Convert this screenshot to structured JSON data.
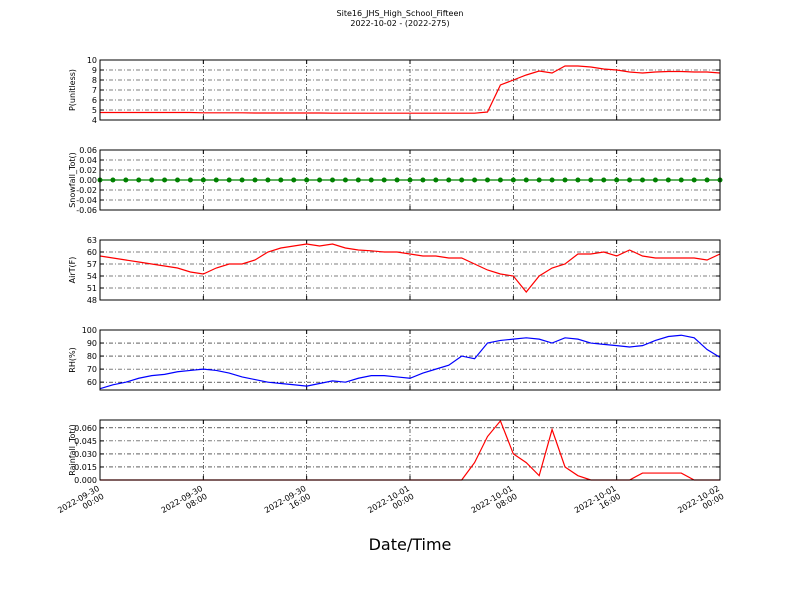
{
  "chart_data": [
    {
      "type": "line",
      "title": "Site16_JHS_High_School_Fifteen",
      "subtitle": "2022-10-02 - (2022-275)",
      "ylabel": "P(unitless)",
      "grid": true,
      "xlim": [
        "2022-09-30 00:00",
        "2022-10-02 00:00"
      ],
      "x": [
        "2022-09-30 00:00",
        "2022-09-30 01:00",
        "2022-09-30 02:00",
        "2022-09-30 03:00",
        "2022-09-30 04:00",
        "2022-09-30 05:00",
        "2022-09-30 06:00",
        "2022-09-30 07:00",
        "2022-09-30 08:00",
        "2022-09-30 09:00",
        "2022-09-30 10:00",
        "2022-09-30 11:00",
        "2022-09-30 12:00",
        "2022-09-30 13:00",
        "2022-09-30 14:00",
        "2022-09-30 15:00",
        "2022-09-30 16:00",
        "2022-09-30 17:00",
        "2022-09-30 18:00",
        "2022-09-30 19:00",
        "2022-09-30 20:00",
        "2022-09-30 21:00",
        "2022-09-30 22:00",
        "2022-09-30 23:00",
        "2022-10-01 00:00",
        "2022-10-01 01:00",
        "2022-10-01 02:00",
        "2022-10-01 03:00",
        "2022-10-01 04:00",
        "2022-10-01 05:00",
        "2022-10-01 06:00",
        "2022-10-01 07:00",
        "2022-10-01 08:00",
        "2022-10-01 09:00",
        "2022-10-01 10:00",
        "2022-10-01 11:00",
        "2022-10-01 12:00",
        "2022-10-01 13:00",
        "2022-10-01 14:00",
        "2022-10-01 15:00",
        "2022-10-01 16:00",
        "2022-10-01 17:00",
        "2022-10-01 18:00",
        "2022-10-01 19:00",
        "2022-10-01 20:00",
        "2022-10-01 21:00",
        "2022-10-01 22:00",
        "2022-10-01 23:00",
        "2022-10-02 00:00"
      ],
      "ylim": [
        4,
        10
      ],
      "yticks": [
        4,
        5,
        6,
        7,
        8,
        9,
        10
      ],
      "series": [
        {
          "color": "#ff0000",
          "values": [
            4.75,
            4.75,
            4.75,
            4.75,
            4.75,
            4.75,
            4.75,
            4.75,
            4.72,
            4.72,
            4.72,
            4.72,
            4.7,
            4.7,
            4.7,
            4.7,
            4.7,
            4.7,
            4.68,
            4.68,
            4.68,
            4.68,
            4.68,
            4.68,
            4.68,
            4.68,
            4.68,
            4.68,
            4.68,
            4.68,
            4.8,
            7.5,
            8.0,
            8.5,
            8.9,
            8.7,
            9.4,
            9.4,
            9.3,
            9.1,
            9.0,
            8.8,
            8.7,
            8.8,
            8.85,
            8.85,
            8.8,
            8.8,
            8.7
          ]
        }
      ]
    },
    {
      "type": "line",
      "ylabel": "Snowfall_Tot()",
      "grid": true,
      "markers": true,
      "xlim": [
        "2022-09-30 00:00",
        "2022-10-02 00:00"
      ],
      "x": [
        "2022-09-30 00:00",
        "2022-09-30 01:00",
        "2022-09-30 02:00",
        "2022-09-30 03:00",
        "2022-09-30 04:00",
        "2022-09-30 05:00",
        "2022-09-30 06:00",
        "2022-09-30 07:00",
        "2022-09-30 08:00",
        "2022-09-30 09:00",
        "2022-09-30 10:00",
        "2022-09-30 11:00",
        "2022-09-30 12:00",
        "2022-09-30 13:00",
        "2022-09-30 14:00",
        "2022-09-30 15:00",
        "2022-09-30 16:00",
        "2022-09-30 17:00",
        "2022-09-30 18:00",
        "2022-09-30 19:00",
        "2022-09-30 20:00",
        "2022-09-30 21:00",
        "2022-09-30 22:00",
        "2022-09-30 23:00",
        "2022-10-01 00:00",
        "2022-10-01 01:00",
        "2022-10-01 02:00",
        "2022-10-01 03:00",
        "2022-10-01 04:00",
        "2022-10-01 05:00",
        "2022-10-01 06:00",
        "2022-10-01 07:00",
        "2022-10-01 08:00",
        "2022-10-01 09:00",
        "2022-10-01 10:00",
        "2022-10-01 11:00",
        "2022-10-01 12:00",
        "2022-10-01 13:00",
        "2022-10-01 14:00",
        "2022-10-01 15:00",
        "2022-10-01 16:00",
        "2022-10-01 17:00",
        "2022-10-01 18:00",
        "2022-10-01 19:00",
        "2022-10-01 20:00",
        "2022-10-01 21:00",
        "2022-10-01 22:00",
        "2022-10-01 23:00",
        "2022-10-02 00:00"
      ],
      "ylim": [
        -0.06,
        0.06
      ],
      "yticks": [
        -0.06,
        -0.04,
        -0.02,
        {
          "value": 0,
          "label": "0.00"
        },
        0.02,
        0.04,
        0.06
      ],
      "series": [
        {
          "color": "#008000",
          "values": [
            0,
            0,
            0,
            0,
            0,
            0,
            0,
            0,
            0,
            0,
            0,
            0,
            0,
            0,
            0,
            0,
            0,
            0,
            0,
            0,
            0,
            0,
            0,
            0,
            0,
            0,
            0,
            0,
            0,
            0,
            0,
            0,
            0,
            0,
            0,
            0,
            0,
            0,
            0,
            0,
            0,
            0,
            0,
            0,
            0,
            0,
            0,
            0,
            0
          ]
        }
      ]
    },
    {
      "type": "line",
      "ylabel": "AirT(F)",
      "grid": true,
      "xlim": [
        "2022-09-30 00:00",
        "2022-10-02 00:00"
      ],
      "x": [
        "2022-09-30 00:00",
        "2022-09-30 01:00",
        "2022-09-30 02:00",
        "2022-09-30 03:00",
        "2022-09-30 04:00",
        "2022-09-30 05:00",
        "2022-09-30 06:00",
        "2022-09-30 07:00",
        "2022-09-30 08:00",
        "2022-09-30 09:00",
        "2022-09-30 10:00",
        "2022-09-30 11:00",
        "2022-09-30 12:00",
        "2022-09-30 13:00",
        "2022-09-30 14:00",
        "2022-09-30 15:00",
        "2022-09-30 16:00",
        "2022-09-30 17:00",
        "2022-09-30 18:00",
        "2022-09-30 19:00",
        "2022-09-30 20:00",
        "2022-09-30 21:00",
        "2022-09-30 22:00",
        "2022-09-30 23:00",
        "2022-10-01 00:00",
        "2022-10-01 01:00",
        "2022-10-01 02:00",
        "2022-10-01 03:00",
        "2022-10-01 04:00",
        "2022-10-01 05:00",
        "2022-10-01 06:00",
        "2022-10-01 07:00",
        "2022-10-01 08:00",
        "2022-10-01 09:00",
        "2022-10-01 10:00",
        "2022-10-01 11:00",
        "2022-10-01 12:00",
        "2022-10-01 13:00",
        "2022-10-01 14:00",
        "2022-10-01 15:00",
        "2022-10-01 16:00",
        "2022-10-01 17:00",
        "2022-10-01 18:00",
        "2022-10-01 19:00",
        "2022-10-01 20:00",
        "2022-10-01 21:00",
        "2022-10-01 22:00",
        "2022-10-01 23:00",
        "2022-10-02 00:00"
      ],
      "ylim": [
        48,
        63
      ],
      "yticks": [
        48,
        51,
        54,
        57,
        60,
        63
      ],
      "series": [
        {
          "color": "#ff0000",
          "values": [
            59,
            58.5,
            58,
            57.5,
            57,
            56.5,
            56,
            55,
            54.5,
            56,
            57,
            57,
            58,
            60,
            61,
            61.5,
            62,
            61.5,
            62,
            61,
            60.5,
            60.3,
            60,
            60,
            59.5,
            59,
            59,
            58.5,
            58.5,
            57,
            55.5,
            54.5,
            54,
            50,
            54,
            56,
            57,
            59.5,
            59.5,
            60,
            59,
            60.5,
            59,
            58.5,
            58.5,
            58.5,
            58.5,
            58,
            59.5
          ]
        }
      ]
    },
    {
      "type": "line",
      "ylabel": "RH(%)",
      "grid": true,
      "xlim": [
        "2022-09-30 00:00",
        "2022-10-02 00:00"
      ],
      "x": [
        "2022-09-30 00:00",
        "2022-09-30 01:00",
        "2022-09-30 02:00",
        "2022-09-30 03:00",
        "2022-09-30 04:00",
        "2022-09-30 05:00",
        "2022-09-30 06:00",
        "2022-09-30 07:00",
        "2022-09-30 08:00",
        "2022-09-30 09:00",
        "2022-09-30 10:00",
        "2022-09-30 11:00",
        "2022-09-30 12:00",
        "2022-09-30 13:00",
        "2022-09-30 14:00",
        "2022-09-30 15:00",
        "2022-09-30 16:00",
        "2022-09-30 17:00",
        "2022-09-30 18:00",
        "2022-09-30 19:00",
        "2022-09-30 20:00",
        "2022-09-30 21:00",
        "2022-09-30 22:00",
        "2022-09-30 23:00",
        "2022-10-01 00:00",
        "2022-10-01 01:00",
        "2022-10-01 02:00",
        "2022-10-01 03:00",
        "2022-10-01 04:00",
        "2022-10-01 05:00",
        "2022-10-01 06:00",
        "2022-10-01 07:00",
        "2022-10-01 08:00",
        "2022-10-01 09:00",
        "2022-10-01 10:00",
        "2022-10-01 11:00",
        "2022-10-01 12:00",
        "2022-10-01 13:00",
        "2022-10-01 14:00",
        "2022-10-01 15:00",
        "2022-10-01 16:00",
        "2022-10-01 17:00",
        "2022-10-01 18:00",
        "2022-10-01 19:00",
        "2022-10-01 20:00",
        "2022-10-01 21:00",
        "2022-10-01 22:00",
        "2022-10-01 23:00",
        "2022-10-02 00:00"
      ],
      "ylim": [
        54,
        100
      ],
      "yticks": [
        60,
        70,
        80,
        90,
        100
      ],
      "series": [
        {
          "color": "#0000ff",
          "values": [
            55,
            58,
            60,
            63,
            65,
            66,
            68,
            69,
            70,
            69,
            67,
            64,
            62,
            60,
            59,
            58,
            57,
            59,
            61,
            60,
            63,
            65,
            65,
            64,
            63,
            67,
            70,
            73,
            80,
            78,
            90,
            92,
            93,
            94,
            93,
            90,
            94,
            93,
            90,
            89,
            88,
            87,
            88,
            92,
            95,
            96,
            94,
            85,
            79
          ]
        }
      ]
    },
    {
      "type": "line",
      "ylabel": "Rainfall_Tot()",
      "xlabel": "Date/Time",
      "grid": true,
      "xlim": [
        "2022-09-30 00:00",
        "2022-10-02 00:00"
      ],
      "x": [
        "2022-09-30 00:00",
        "2022-09-30 01:00",
        "2022-09-30 02:00",
        "2022-09-30 03:00",
        "2022-09-30 04:00",
        "2022-09-30 05:00",
        "2022-09-30 06:00",
        "2022-09-30 07:00",
        "2022-09-30 08:00",
        "2022-09-30 09:00",
        "2022-09-30 10:00",
        "2022-09-30 11:00",
        "2022-09-30 12:00",
        "2022-09-30 13:00",
        "2022-09-30 14:00",
        "2022-09-30 15:00",
        "2022-09-30 16:00",
        "2022-09-30 17:00",
        "2022-09-30 18:00",
        "2022-09-30 19:00",
        "2022-09-30 20:00",
        "2022-09-30 21:00",
        "2022-09-30 22:00",
        "2022-09-30 23:00",
        "2022-10-01 00:00",
        "2022-10-01 01:00",
        "2022-10-01 02:00",
        "2022-10-01 03:00",
        "2022-10-01 04:00",
        "2022-10-01 05:00",
        "2022-10-01 06:00",
        "2022-10-01 07:00",
        "2022-10-01 08:00",
        "2022-10-01 09:00",
        "2022-10-01 10:00",
        "2022-10-01 11:00",
        "2022-10-01 12:00",
        "2022-10-01 13:00",
        "2022-10-01 14:00",
        "2022-10-01 15:00",
        "2022-10-01 16:00",
        "2022-10-01 17:00",
        "2022-10-01 18:00",
        "2022-10-01 19:00",
        "2022-10-01 20:00",
        "2022-10-01 21:00",
        "2022-10-01 22:00",
        "2022-10-01 23:00",
        "2022-10-02 00:00"
      ],
      "xticks": [
        {
          "value": "2022-09-30 00:00",
          "label": [
            "2022-09-30",
            "00:00"
          ]
        },
        {
          "value": "2022-09-30 08:00",
          "label": [
            "2022-09-30",
            "08:00"
          ]
        },
        {
          "value": "2022-09-30 16:00",
          "label": [
            "2022-09-30",
            "16:00"
          ]
        },
        {
          "value": "2022-10-01 00:00",
          "label": [
            "2022-10-01",
            "00:00"
          ]
        },
        {
          "value": "2022-10-01 08:00",
          "label": [
            "2022-10-01",
            "08:00"
          ]
        },
        {
          "value": "2022-10-01 16:00",
          "label": [
            "2022-10-01",
            "16:00"
          ]
        },
        {
          "value": "2022-10-02 00:00",
          "label": [
            "2022-10-02",
            "00:00"
          ]
        }
      ],
      "ylim": [
        0,
        0.069
      ],
      "yticks": [
        {
          "value": 0,
          "label": "0.000"
        },
        {
          "value": 0.015,
          "label": "0.015"
        },
        {
          "value": 0.03,
          "label": "0.030"
        },
        {
          "value": 0.045,
          "label": "0.045"
        },
        {
          "value": 0.06,
          "label": "0.060"
        }
      ],
      "series": [
        {
          "color": "#ff0000",
          "values": [
            0,
            0,
            0,
            0,
            0,
            0,
            0,
            0,
            0,
            0,
            0,
            0,
            0,
            0,
            0,
            0,
            0,
            0,
            0,
            0,
            0,
            0,
            0,
            0,
            0,
            0,
            0,
            0,
            0,
            0.02,
            0.05,
            0.068,
            0.03,
            0.02,
            0.005,
            0.058,
            0.015,
            0.005,
            0,
            0,
            0,
            0,
            0.008,
            0.008,
            0.008,
            0.008,
            0,
            0,
            0
          ]
        }
      ]
    }
  ]
}
